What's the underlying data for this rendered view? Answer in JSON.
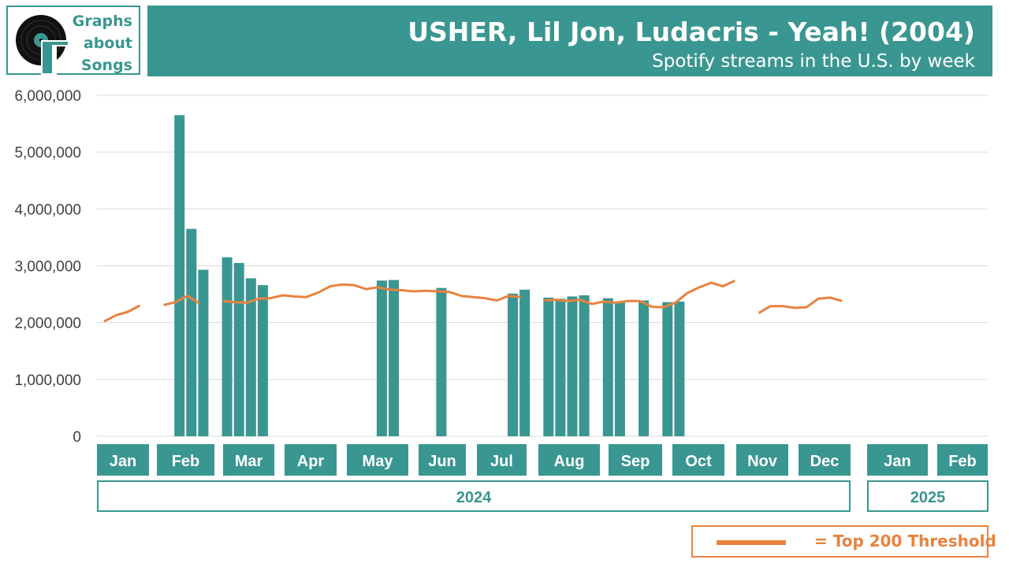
{
  "header": {
    "logo_lines": [
      "Graphs",
      "about",
      "Songs"
    ],
    "title": "USHER, Lil Jon, Ludacris - Yeah! (2004)",
    "subtitle": "Spotify streams in the U.S. by week"
  },
  "legend": {
    "label": "= Top 200 Threshold"
  },
  "colors": {
    "teal": "#3a9690",
    "orange": "#e8823f",
    "grid": "#d9d9d9",
    "axis_text": "#404040"
  },
  "chart_data": {
    "type": "bar",
    "ylim": [
      0,
      6000000
    ],
    "y_ticks": [
      "0",
      "1,000,000",
      "2,000,000",
      "3,000,000",
      "4,000,000",
      "5,000,000",
      "6,000,000"
    ],
    "months": [
      {
        "label": "Jan",
        "year": "2024"
      },
      {
        "label": "Feb",
        "year": "2024"
      },
      {
        "label": "Mar",
        "year": "2024"
      },
      {
        "label": "Apr",
        "year": "2024"
      },
      {
        "label": "May",
        "year": "2024"
      },
      {
        "label": "Jun",
        "year": "2024"
      },
      {
        "label": "Jul",
        "year": "2024"
      },
      {
        "label": "Aug",
        "year": "2024"
      },
      {
        "label": "Sep",
        "year": "2024"
      },
      {
        "label": "Oct",
        "year": "2024"
      },
      {
        "label": "Nov",
        "year": "2024"
      },
      {
        "label": "Dec",
        "year": "2024"
      },
      {
        "label": "Jan",
        "year": "2025"
      },
      {
        "label": "Feb",
        "year": "2025"
      }
    ],
    "years": [
      "2024",
      "2025"
    ],
    "weekly_streams": [
      null,
      null,
      null,
      null,
      null,
      null,
      5650000,
      3650000,
      2930000,
      null,
      3150000,
      3050000,
      2780000,
      2660000,
      null,
      null,
      null,
      null,
      null,
      null,
      null,
      null,
      null,
      2740000,
      2750000,
      null,
      null,
      null,
      2610000,
      null,
      null,
      null,
      null,
      null,
      2510000,
      2580000,
      null,
      2440000,
      2420000,
      2460000,
      2480000,
      null,
      2430000,
      2360000,
      null,
      2390000,
      null,
      2360000,
      2370000,
      null,
      null,
      null,
      null,
      null,
      null,
      null,
      null,
      null,
      null,
      null,
      null,
      null,
      null
    ],
    "top200_threshold": [
      2020000,
      2130000,
      2190000,
      2300000,
      null,
      2310000,
      2360000,
      2470000,
      2340000,
      null,
      2380000,
      2360000,
      2350000,
      2420000,
      2430000,
      2480000,
      2460000,
      2450000,
      2530000,
      2640000,
      2670000,
      2660000,
      2590000,
      2620000,
      2580000,
      2570000,
      2550000,
      2560000,
      2550000,
      2540000,
      2470000,
      2450000,
      2430000,
      2390000,
      2470000,
      2450000,
      null,
      2390000,
      2400000,
      2380000,
      2400000,
      2330000,
      2370000,
      2350000,
      2380000,
      2380000,
      2280000,
      2270000,
      2350000,
      2520000,
      2620000,
      2700000,
      2640000,
      2740000,
      null,
      2170000,
      2290000,
      2290000,
      2260000,
      2270000,
      2420000,
      2440000,
      2380000
    ]
  }
}
